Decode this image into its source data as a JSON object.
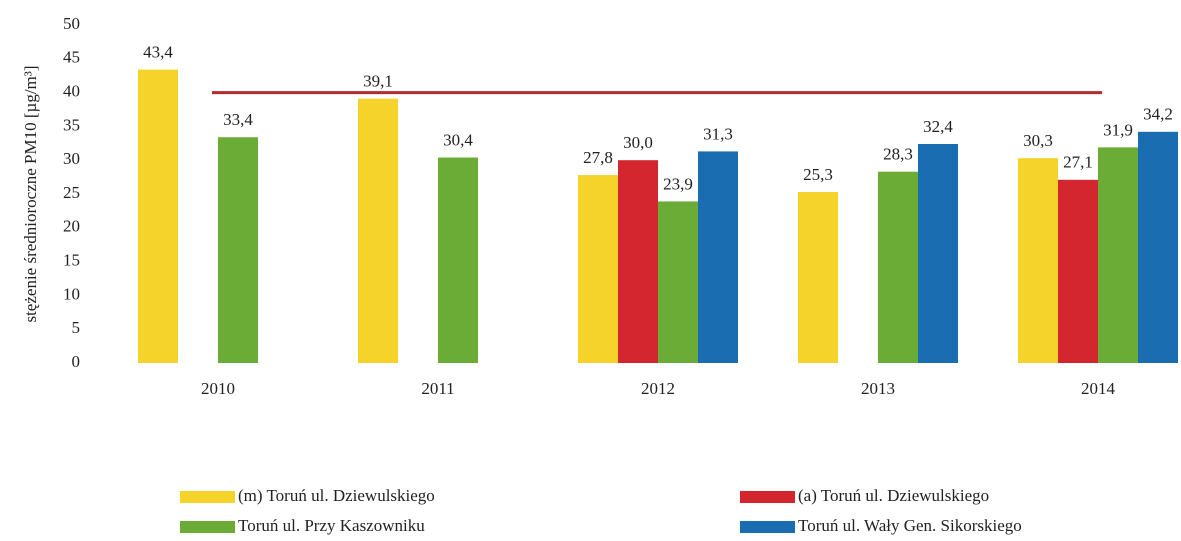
{
  "chart_data": {
    "type": "bar",
    "y_axis_label": "stężenie średnioroczne PM10 [µg/m³]",
    "categories": [
      "2010",
      "2011",
      "2012",
      "2013",
      "2014"
    ],
    "series": [
      {
        "name": "(m) Toruń ul. Dziewulskiego",
        "color": "#f6d32a",
        "values": [
          43.4,
          39.1,
          27.8,
          25.3,
          30.3
        ],
        "value_labels": [
          "43,4",
          "39,1",
          "27,8",
          "25,3",
          "30,3"
        ]
      },
      {
        "name": "(a) Toruń ul. Dziewulskiego",
        "color": "#d3262f",
        "values": [
          null,
          null,
          30.0,
          null,
          27.1
        ],
        "value_labels": [
          null,
          null,
          "30,0",
          null,
          "27,1"
        ]
      },
      {
        "name": "Toruń ul. Przy Kaszowniku",
        "color": "#6aac36",
        "values": [
          33.4,
          30.4,
          23.9,
          28.3,
          31.9
        ],
        "value_labels": [
          "33,4",
          "30,4",
          "23,9",
          "28,3",
          "31,9"
        ]
      },
      {
        "name": "Toruń ul. Wały Gen. Sikorskiego",
        "color": "#1b6db2",
        "values": [
          null,
          null,
          31.3,
          32.4,
          34.2
        ],
        "value_labels": [
          null,
          null,
          "31,3",
          "32,4",
          "34,2"
        ]
      }
    ],
    "reference_line": {
      "value": 40,
      "color": "#b52a2c"
    },
    "ylim": [
      0,
      50
    ],
    "yticks": [
      0,
      5,
      10,
      15,
      20,
      25,
      30,
      35,
      40,
      45,
      50
    ]
  }
}
